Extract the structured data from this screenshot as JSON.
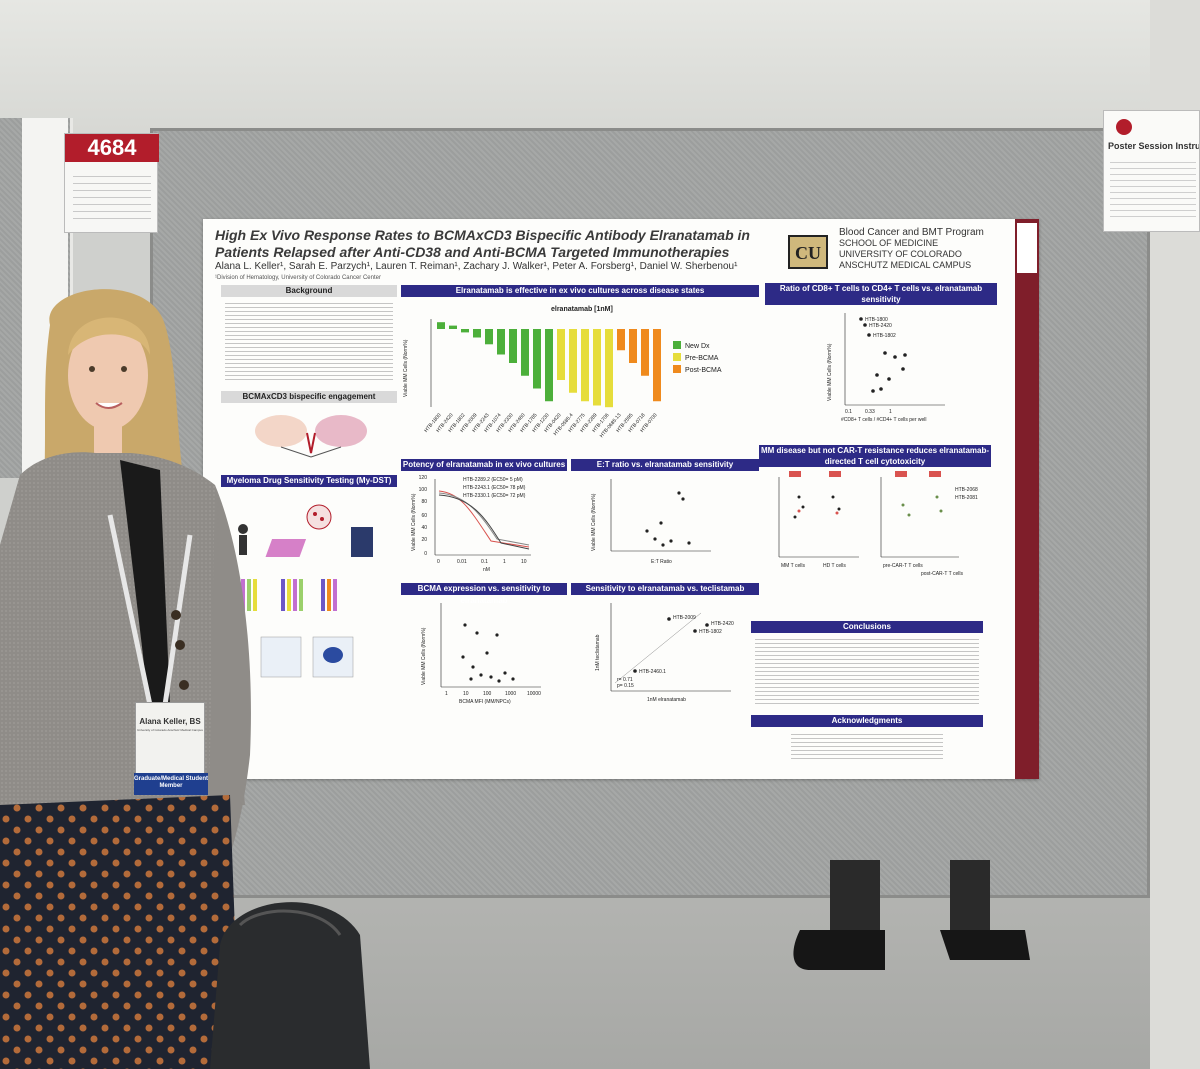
{
  "poster_number": "4684",
  "instructions_card": {
    "title": "Poster Session Instru"
  },
  "poster": {
    "title": "High Ex Vivo Response Rates to BCMAxCD3 Bispecific Antibody Elranatamab in Patients Relapsed after Anti-CD38 and Anti-BCMA Targeted Immunotherapies",
    "authors": "Alana L. Keller¹, Sarah E. Parzych¹, Lauren T. Reiman¹, Zachary J. Walker¹, Peter A. Forsberg¹, Daniel W. Sherbenou¹",
    "affiliation": "¹Division of Hematology, University of Colorado Cancer Center",
    "program": [
      "Blood Cancer and BMT Program",
      "SCHOOL OF MEDICINE",
      "UNIVERSITY OF COLORADO",
      "ANSCHUTZ MEDICAL CAMPUS"
    ],
    "sections": {
      "background": "Background",
      "bispecific": "BCMAxCD3 bispecific engagement",
      "mydst": "Myeloma Drug Sensitivity Testing (My-DST)",
      "effective": "Elranatamab is effective in ex vivo cultures across disease states",
      "potency": "Potency of elranatamab in ex vivo cultures",
      "et_ratio": "E:T ratio vs. elranatamab sensitivity",
      "bcma_expr": "BCMA expression vs. sensitivity to elranatamab",
      "teclistamab": "Sensitivity to elranatamab vs. teclistamab",
      "cd8_cd4": "Ratio of CD8+ T cells to CD4+ T cells vs. elranatamab sensitivity",
      "car_t": "MM disease but not CAR-T resistance reduces elranatamab-directed T cell cytotoxicity",
      "conclusions": "Conclusions",
      "acknowledgments": "Acknowledgments"
    },
    "bar_chart": {
      "title": "elranatamab [1nM]",
      "ylabel": "Viable MM Cells (Norm%)",
      "legend": [
        "New Dx",
        "Pre-BCMA",
        "Post-BCMA"
      ],
      "colors": {
        "New Dx": "#4caf3a",
        "Pre-BCMA": "#e6dd3b",
        "Post-BCMA": "#ef8a1d"
      },
      "categories": [
        "HTB-1800",
        "HTB-2420",
        "HTB-1802",
        "HTB-2009",
        "HTB-2243",
        "HTB-1074",
        "HTB-2330",
        "HTB-2460",
        "HTB-1785",
        "HTB-1230",
        "HTB-0420",
        "HTB-0585.4",
        "HTB-2775",
        "HTB-2289",
        "HTB-1706",
        "HTB-0685.13",
        "HTB-2595",
        "HTB-0718",
        "HTB-0700"
      ],
      "groups": [
        "New Dx",
        "New Dx",
        "New Dx",
        "New Dx",
        "New Dx",
        "New Dx",
        "New Dx",
        "New Dx",
        "New Dx",
        "New Dx",
        "Pre-BCMA",
        "Pre-BCMA",
        "Pre-BCMA",
        "Pre-BCMA",
        "Pre-BCMA",
        "Post-BCMA",
        "Post-BCMA",
        "Post-BCMA",
        "Post-BCMA"
      ],
      "values": [
        8,
        4,
        -4,
        -10,
        -18,
        -30,
        -40,
        -55,
        -70,
        -85,
        -60,
        -75,
        -85,
        -90,
        -92,
        -25,
        -40,
        -55,
        -85
      ]
    },
    "scatter_tec": {
      "labels": [
        "HTB-2009",
        "HTB-2420",
        "HTB-1802",
        "HTB-2460.1"
      ],
      "stats": [
        "r= 0.71",
        "p= 0.15"
      ],
      "xlabel": "1nM elranatamab",
      "ylabel": "1nM teclistamab"
    },
    "scatter_cd8": {
      "labels": [
        "HTB-1800",
        "HTB-2420",
        "HTB-1802"
      ],
      "xlabel": "#CD8+ T cells / #CD4+ T cells per well",
      "ylabel": "Viable MM Cells (Norm%)",
      "x_ticks": [
        "0.1",
        "0.33",
        "1"
      ]
    },
    "potency_legend": [
      "HTB-2289.2 (EC50= 5 pM)",
      "HTB-2243.1 (EC50= 78 pM)",
      "HTB-2330.1 (EC50= 72 pM)"
    ],
    "potency_axes": {
      "xlabel": "nM",
      "ylabel": "Viable MM Cells (Norm%)",
      "x_ticks": [
        "0",
        "0.01",
        "0.1",
        "1",
        "10"
      ],
      "y_ticks": [
        "120",
        "100",
        "80",
        "60",
        "40",
        "20",
        "0"
      ]
    },
    "et_axes": {
      "xlabel": "E:T Ratio",
      "ylabel": "Viable MM Cells (Norm%)"
    },
    "bcma_axes": {
      "xlabel": "BCMA MFI (MM/NPCs)",
      "ylabel": "Viable MM Cells (Norm%)",
      "x_ticks": [
        "1",
        "10",
        "100",
        "1000",
        "10000"
      ]
    },
    "car_t_labels": [
      "MM T cells",
      "HD T cells",
      "pre-CAR-T T cells",
      "post-CAR-T T cells",
      "HTB-2068",
      "HTB-2081"
    ]
  },
  "badge": {
    "name": "Alana Keller, BS",
    "org": "University of Colorado Anschutz Medical Campus",
    "ribbon": "Graduate/Medical Student Member"
  }
}
